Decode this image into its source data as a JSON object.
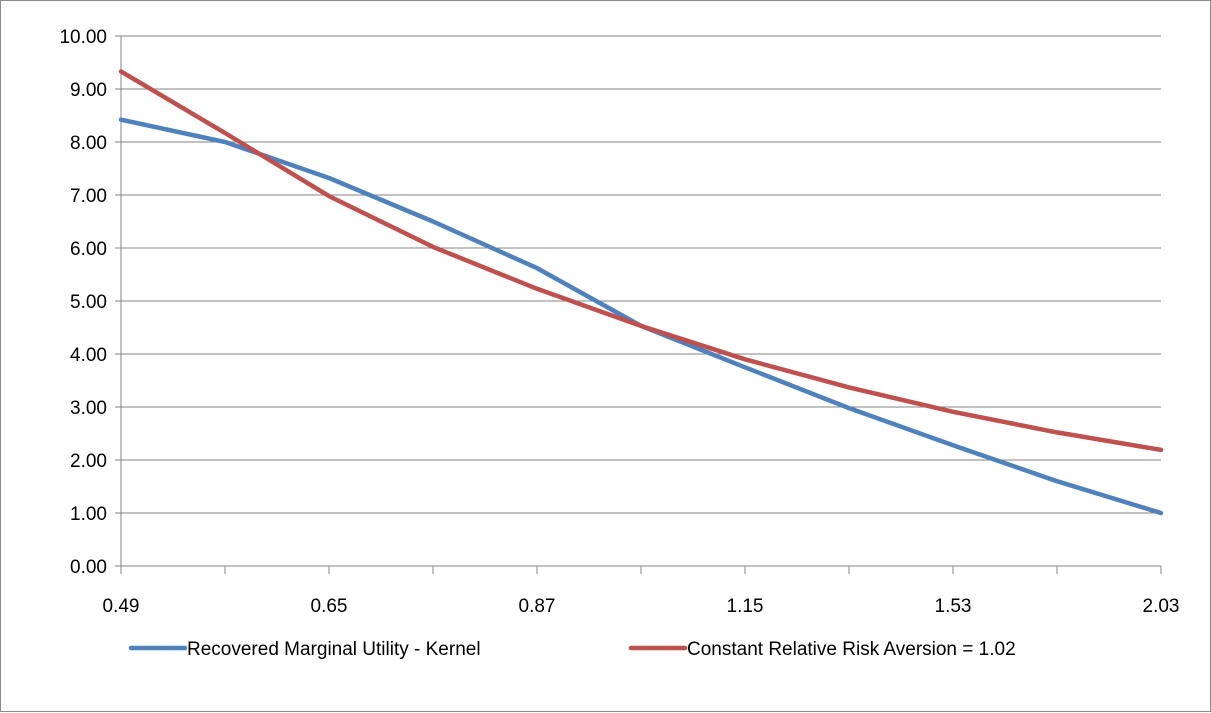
{
  "chart_data": {
    "type": "line",
    "title": "",
    "xlabel": "",
    "ylabel": "",
    "grid": true,
    "legend_position": "bottom",
    "ylim": [
      0,
      10
    ],
    "y_ticks": [
      "0.00",
      "1.00",
      "2.00",
      "3.00",
      "4.00",
      "5.00",
      "6.00",
      "7.00",
      "8.00",
      "9.00",
      "10.00"
    ],
    "x_ticks": [
      "0.49",
      "0.65",
      "0.87",
      "1.15",
      "1.53",
      "2.03"
    ],
    "series": [
      {
        "name": "Recovered Marginal Utility - Kernel",
        "color": "#4F81BD",
        "x": [
          0.49,
          0.56,
          0.65,
          0.75,
          0.87,
          1.0,
          1.15,
          1.32,
          1.53,
          1.76,
          2.03
        ],
        "values": [
          8.42,
          8.0,
          7.32,
          6.5,
          5.62,
          4.53,
          3.75,
          2.98,
          2.28,
          1.6,
          1.0
        ]
      },
      {
        "name": "Constant Relative Risk Aversion = 1.02",
        "color": "#C0504D",
        "x": [
          0.49,
          0.56,
          0.65,
          0.75,
          0.87,
          1.0,
          1.15,
          1.32,
          1.53,
          1.76,
          2.03
        ],
        "values": [
          9.33,
          8.17,
          6.98,
          6.02,
          5.23,
          4.53,
          3.9,
          3.37,
          2.91,
          2.52,
          2.19
        ]
      }
    ]
  }
}
